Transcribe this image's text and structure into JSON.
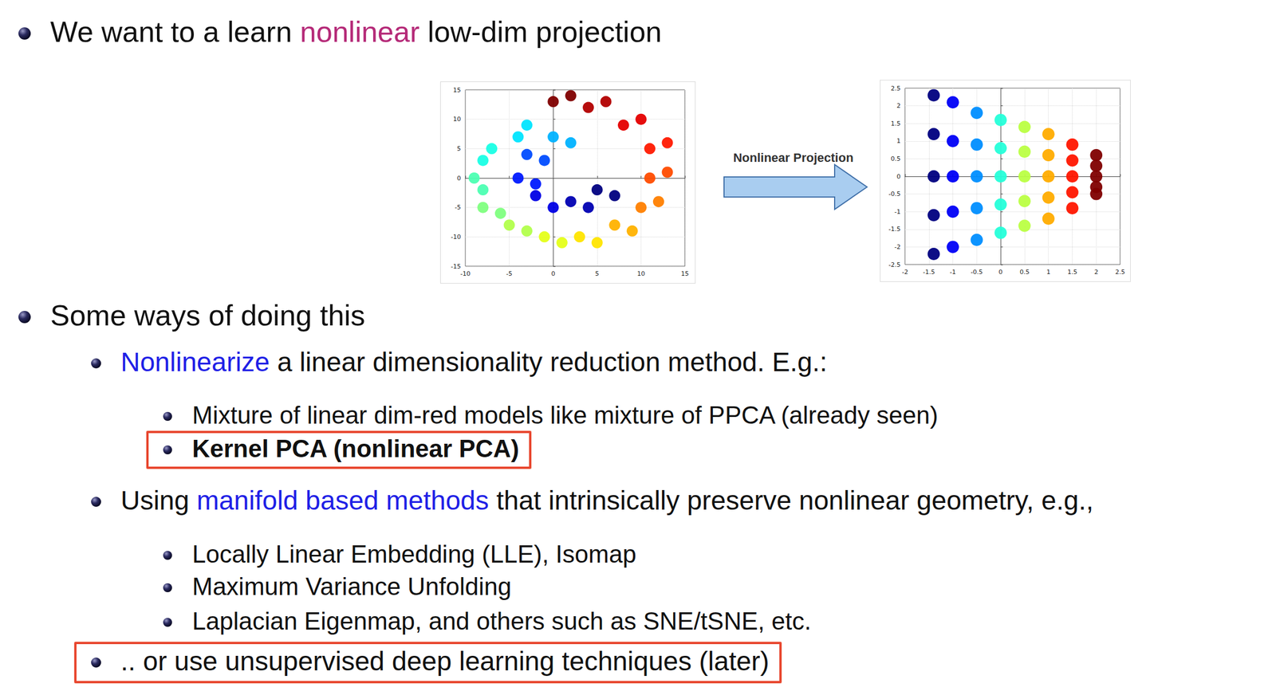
{
  "slide": {
    "title": [
      {
        "text": "We want to a learn "
      },
      {
        "text": "nonlinear",
        "color": "#b52a78"
      },
      {
        "text": " low-dim projection"
      }
    ],
    "arrow_label": "Nonlinear Projection",
    "bullets": [
      {
        "level": 1,
        "segments": [
          {
            "text": "Some ways of doing this"
          }
        ]
      },
      {
        "level": 2,
        "segments": [
          {
            "text": "Nonlinearize",
            "color": "#1f1fe6"
          },
          {
            "text": " a linear dimensionality reduction method. E.g.:"
          }
        ]
      },
      {
        "level": 3,
        "segments": [
          {
            "text": "Mixture of linear dim-red models like mixture of PPCA (already seen)"
          }
        ]
      },
      {
        "level": 3,
        "highlight": true,
        "segments": [
          {
            "text": "Kernel PCA (nonlinear PCA)",
            "bold": true
          }
        ]
      },
      {
        "level": 2,
        "segments": [
          {
            "text": "Using "
          },
          {
            "text": "manifold based methods",
            "color": "#1f1fe6"
          },
          {
            "text": " that intrinsically preserve nonlinear geometry, e.g.,"
          }
        ]
      },
      {
        "level": 3,
        "segments": [
          {
            "text": "Locally Linear Embedding (LLE), Isomap"
          }
        ]
      },
      {
        "level": 3,
        "segments": [
          {
            "text": "Maximum Variance Unfolding"
          }
        ]
      },
      {
        "level": 3,
        "segments": [
          {
            "text": "Laplacian Eigenmap, and others such as SNE/tSNE, etc."
          }
        ]
      },
      {
        "level": 2,
        "highlight": true,
        "segments": [
          {
            "text": ".. or use unsupervised deep learning techniques (later)"
          }
        ]
      }
    ]
  },
  "chart_data": [
    {
      "type": "scatter",
      "x": [
        5,
        7,
        2,
        4,
        -2,
        0,
        -4,
        -2,
        -3,
        -1,
        0,
        2,
        -4,
        -3,
        -7,
        -8,
        -9,
        -8,
        -8,
        -6,
        -5,
        -3,
        -1,
        1,
        3,
        5,
        7,
        9,
        10,
        12,
        11,
        13,
        11,
        13,
        8,
        10,
        4,
        6,
        0,
        2
      ],
      "y": [
        -2,
        -3,
        -4,
        -5,
        -3,
        -5,
        0,
        -1,
        4,
        3,
        7,
        6,
        7,
        9,
        5,
        3,
        0,
        -2,
        -5,
        -6,
        -8,
        -9,
        -10,
        -11,
        -10,
        -11,
        -8,
        -9,
        -5,
        -4,
        0,
        1,
        5,
        6,
        9,
        10,
        12,
        13,
        13,
        14
      ],
      "color_values": [
        0,
        0,
        0.05,
        0.05,
        0.1,
        0.1,
        0.15,
        0.15,
        0.2,
        0.2,
        0.3,
        0.3,
        0.35,
        0.35,
        0.4,
        0.4,
        0.45,
        0.45,
        0.5,
        0.5,
        0.55,
        0.55,
        0.6,
        0.6,
        0.65,
        0.65,
        0.7,
        0.7,
        0.75,
        0.75,
        0.8,
        0.8,
        0.85,
        0.85,
        0.9,
        0.9,
        0.95,
        0.95,
        1,
        1
      ],
      "color_range": [
        0,
        1
      ],
      "xlim": [
        -10,
        15
      ],
      "xticks": [
        -10,
        -5,
        0,
        5,
        10,
        15
      ],
      "ylim": [
        -15,
        15
      ],
      "yticks": [
        -15,
        -10,
        -5,
        0,
        5,
        10,
        15
      ],
      "grid": true
    },
    {
      "type": "scatter",
      "x": [
        -1.4,
        -1.4,
        -1.4,
        -1.4,
        -1.4,
        -1,
        -1,
        -1,
        -1,
        -1,
        -0.5,
        -0.5,
        -0.5,
        -0.5,
        -0.5,
        0,
        0,
        0,
        0,
        0,
        0.5,
        0.5,
        0.5,
        0.5,
        0.5,
        1,
        1,
        1,
        1,
        1,
        1.5,
        1.5,
        1.5,
        1.5,
        1.5,
        2,
        2,
        2,
        2,
        2
      ],
      "y": [
        2.3,
        1.2,
        0,
        -1.1,
        -2.2,
        2.1,
        1,
        0,
        -1,
        -2,
        1.8,
        0.9,
        0,
        -0.9,
        -1.8,
        1.6,
        0.8,
        0,
        -0.8,
        -1.6,
        1.4,
        0.7,
        0,
        -0.7,
        -1.4,
        1.2,
        0.6,
        0,
        -0.6,
        -1.2,
        0.9,
        0.45,
        0,
        -0.45,
        -0.9,
        0.6,
        0.3,
        0,
        -0.3,
        -0.5
      ],
      "color_values": [
        -1.4,
        -1.4,
        -1.4,
        -1.4,
        -1.4,
        -1,
        -1,
        -1,
        -1,
        -1,
        -0.5,
        -0.5,
        -0.5,
        -0.5,
        -0.5,
        0,
        0,
        0,
        0,
        0,
        0.5,
        0.5,
        0.5,
        0.5,
        0.5,
        1,
        1,
        1,
        1,
        1,
        1.5,
        1.5,
        1.5,
        1.5,
        1.5,
        2,
        2,
        2,
        2,
        2
      ],
      "color_range": [
        -1.4,
        2
      ],
      "xlim": [
        -2,
        2.5
      ],
      "xticks": [
        -2,
        -1.5,
        -1,
        -0.5,
        0,
        0.5,
        1,
        1.5,
        2,
        2.5
      ],
      "ylim": [
        -2.5,
        2.5
      ],
      "yticks": [
        -2.5,
        -2,
        -1.5,
        -1,
        -0.5,
        0,
        0.5,
        1,
        1.5,
        2,
        2.5
      ],
      "grid": true
    }
  ]
}
